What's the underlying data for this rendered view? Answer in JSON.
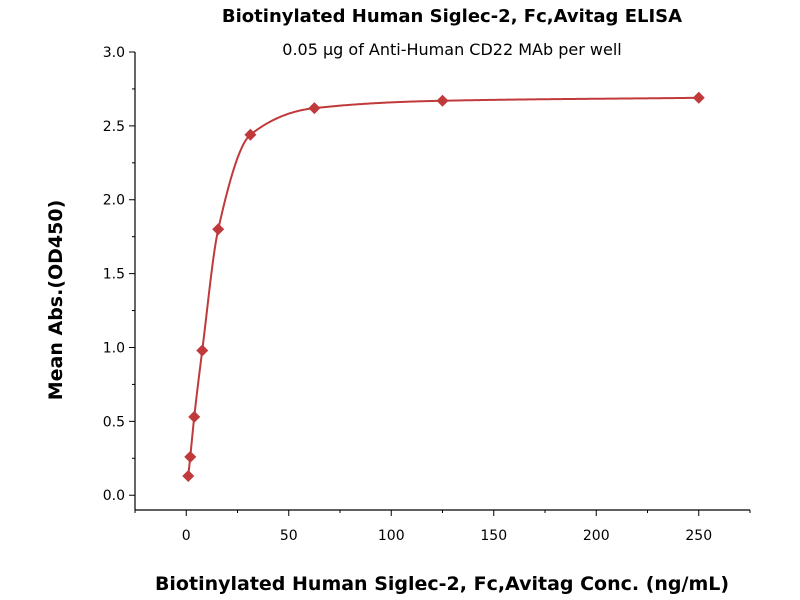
{
  "chart_data": {
    "type": "scatter",
    "title": "Biotinylated Human Siglec-2, Fc,Avitag ELISA",
    "subtitle": "0.05 μg of Anti-Human CD22 MAb per well",
    "xlabel": "Biotinylated Human Siglec-2, Fc,Avitag Conc. (ng/mL)",
    "ylabel": "Mean Abs.(OD450)",
    "xlim": [
      -25,
      275
    ],
    "ylim": [
      -0.1,
      3.0
    ],
    "x_ticks": [
      0,
      50,
      100,
      150,
      200,
      250
    ],
    "x_tick_labels": [
      "0",
      "50",
      "100",
      "150",
      "200",
      "250"
    ],
    "y_ticks": [
      0.0,
      0.5,
      1.0,
      1.5,
      2.0,
      2.5,
      3.0
    ],
    "y_tick_labels": [
      "0.0",
      "0.5",
      "1.0",
      "1.5",
      "2.0",
      "2.5",
      "3.0"
    ],
    "grid": false,
    "marker_color": "#c0393b",
    "line_color": "#c0393b",
    "series": [
      {
        "x": [
          0.98,
          1.95,
          3.9,
          7.8,
          15.6,
          31.3,
          62.5,
          125,
          250
        ],
        "y": [
          0.13,
          0.26,
          0.53,
          0.98,
          1.8,
          2.44,
          2.62,
          2.67,
          2.69
        ],
        "fit_curve": true
      }
    ]
  }
}
